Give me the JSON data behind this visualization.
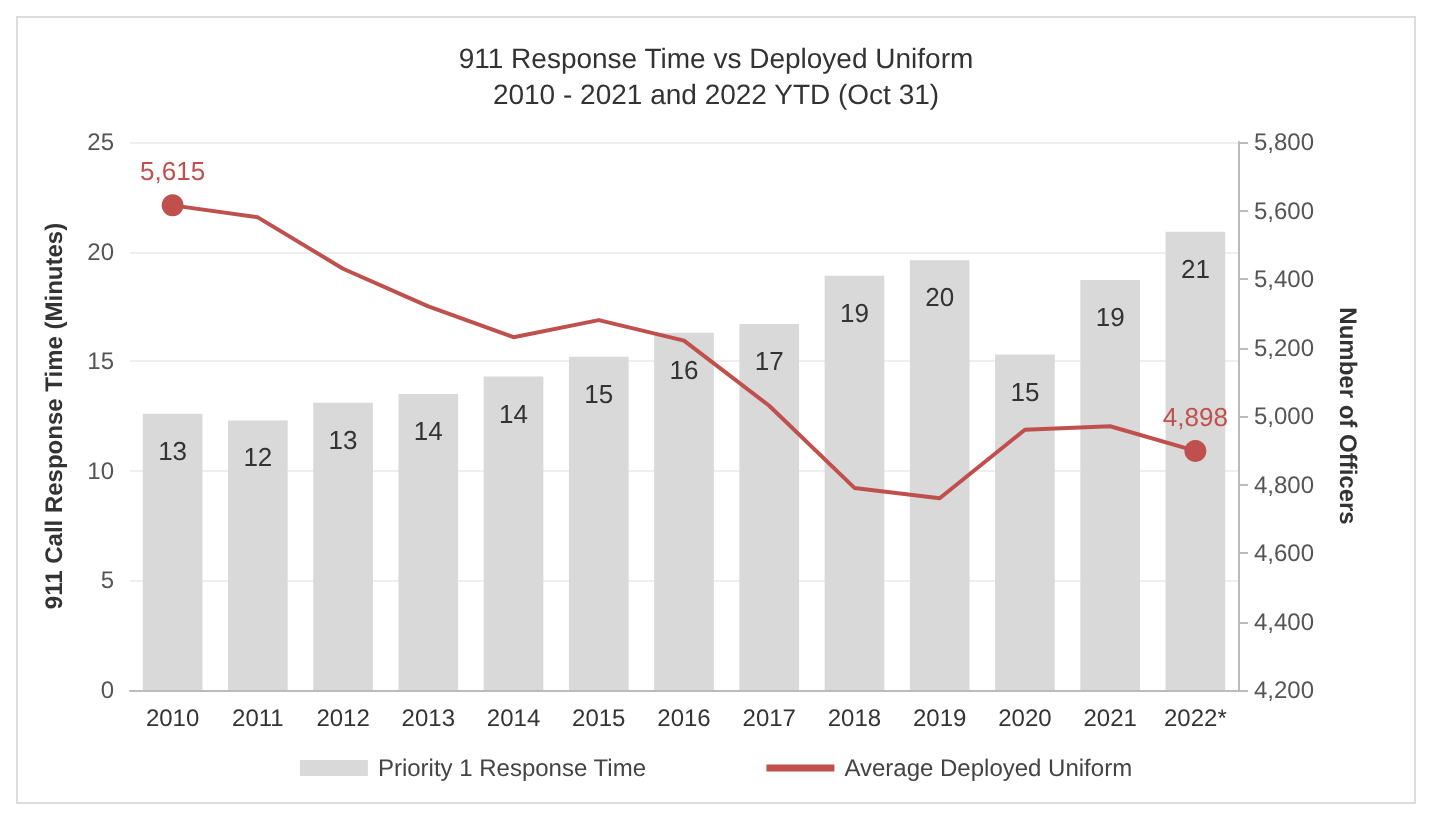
{
  "chart_data": {
    "type": "bar",
    "title": "911 Response Time vs Deployed Uniform",
    "subtitle": "2010 - 2021 and 2022 YTD (Oct 31)",
    "ylabel": "911 Call Response Time (Minutes)",
    "y2label": "Number of Officers",
    "categories": [
      "2010",
      "2011",
      "2012",
      "2013",
      "2014",
      "2015",
      "2016",
      "2017",
      "2018",
      "2019",
      "2020",
      "2021",
      "2022*"
    ],
    "series": [
      {
        "name": "Priority 1 Response Time",
        "color": "#d9d9d9",
        "values": [
          12.6,
          12.3,
          13.1,
          13.5,
          14.3,
          15.2,
          16.3,
          16.7,
          18.9,
          19.6,
          15.3,
          18.7,
          20.9
        ],
        "value_labels": [
          "13",
          "12",
          "13",
          "14",
          "14",
          "15",
          "16",
          "17",
          "19",
          "20",
          "15",
          "19",
          "21"
        ]
      },
      {
        "name": "Average Deployed Uniform",
        "type": "line",
        "axis": "y2",
        "color": "#c0504d",
        "values": [
          5615,
          5580,
          5430,
          5320,
          5230,
          5280,
          5220,
          5030,
          4790,
          4760,
          4960,
          4970,
          4898
        ],
        "value_labels": [
          "5,615",
          null,
          null,
          null,
          null,
          null,
          null,
          null,
          null,
          null,
          null,
          null,
          "4,898"
        ]
      }
    ],
    "ylim": [
      0,
      25
    ],
    "yticks": [
      0,
      5,
      10,
      15,
      20,
      25
    ],
    "y2lim": [
      4200,
      5800
    ],
    "y2ticks": [
      {
        "value": 4200,
        "label": "4,200"
      },
      {
        "value": 4400,
        "label": "4,400"
      },
      {
        "value": 4600,
        "label": "4,600"
      },
      {
        "value": 4800,
        "label": "4,800"
      },
      {
        "value": 5000,
        "label": "5,000"
      },
      {
        "value": 5200,
        "label": "5,200"
      },
      {
        "value": 5400,
        "label": "5,400"
      },
      {
        "value": 5600,
        "label": "5,600"
      },
      {
        "value": 5800,
        "label": "5,800"
      }
    ],
    "grid": "y",
    "legend": "bottom"
  }
}
